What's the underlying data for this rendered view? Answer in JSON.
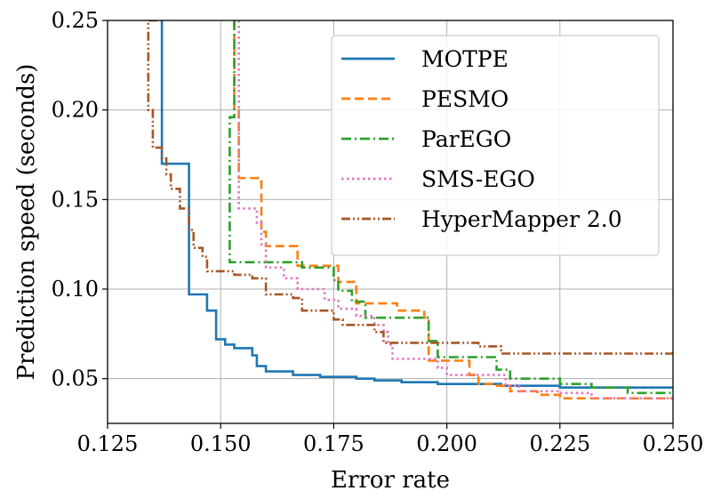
{
  "chart_data": {
    "type": "line",
    "title": "",
    "xlabel": "Error rate",
    "ylabel": "Prediction speed (seconds)",
    "xlim": [
      0.125,
      0.25
    ],
    "ylim": [
      0.025,
      0.25
    ],
    "xticks": [
      0.125,
      0.15,
      0.175,
      0.2,
      0.225,
      0.25
    ],
    "xtick_labels": [
      "0.125",
      "0.150",
      "0.175",
      "0.200",
      "0.225",
      "0.250"
    ],
    "yticks": [
      0.05,
      0.1,
      0.15,
      0.2,
      0.25
    ],
    "ytick_labels": [
      "0.05",
      "0.10",
      "0.15",
      "0.20",
      "0.25"
    ],
    "grid": true,
    "legend_position": "top-right",
    "series": [
      {
        "name": "MOTPE",
        "color": "#1f77b4",
        "dash": "solid",
        "points": [
          [
            0.137,
            0.25
          ],
          [
            0.137,
            0.17
          ],
          [
            0.143,
            0.17
          ],
          [
            0.143,
            0.097
          ],
          [
            0.147,
            0.097
          ],
          [
            0.147,
            0.088
          ],
          [
            0.149,
            0.088
          ],
          [
            0.149,
            0.072
          ],
          [
            0.151,
            0.072
          ],
          [
            0.151,
            0.069
          ],
          [
            0.153,
            0.069
          ],
          [
            0.153,
            0.067
          ],
          [
            0.157,
            0.067
          ],
          [
            0.157,
            0.063
          ],
          [
            0.158,
            0.063
          ],
          [
            0.158,
            0.057
          ],
          [
            0.16,
            0.057
          ],
          [
            0.16,
            0.054
          ],
          [
            0.166,
            0.054
          ],
          [
            0.166,
            0.052
          ],
          [
            0.172,
            0.052
          ],
          [
            0.172,
            0.051
          ],
          [
            0.18,
            0.051
          ],
          [
            0.18,
            0.05
          ],
          [
            0.184,
            0.05
          ],
          [
            0.184,
            0.049
          ],
          [
            0.19,
            0.049
          ],
          [
            0.19,
            0.048
          ],
          [
            0.198,
            0.048
          ],
          [
            0.198,
            0.047
          ],
          [
            0.212,
            0.047
          ],
          [
            0.212,
            0.046
          ],
          [
            0.225,
            0.046
          ],
          [
            0.225,
            0.045
          ],
          [
            0.25,
            0.045
          ]
        ]
      },
      {
        "name": "PESMO",
        "color": "#ff7f0e",
        "dash": "dashed",
        "points": [
          [
            0.153,
            0.25
          ],
          [
            0.153,
            0.2
          ],
          [
            0.154,
            0.2
          ],
          [
            0.154,
            0.162
          ],
          [
            0.159,
            0.162
          ],
          [
            0.159,
            0.132
          ],
          [
            0.16,
            0.132
          ],
          [
            0.16,
            0.124
          ],
          [
            0.167,
            0.124
          ],
          [
            0.167,
            0.113
          ],
          [
            0.176,
            0.113
          ],
          [
            0.176,
            0.104
          ],
          [
            0.18,
            0.104
          ],
          [
            0.18,
            0.092
          ],
          [
            0.189,
            0.092
          ],
          [
            0.189,
            0.088
          ],
          [
            0.195,
            0.088
          ],
          [
            0.195,
            0.084
          ],
          [
            0.196,
            0.084
          ],
          [
            0.196,
            0.06
          ],
          [
            0.205,
            0.06
          ],
          [
            0.205,
            0.052
          ],
          [
            0.207,
            0.052
          ],
          [
            0.207,
            0.047
          ],
          [
            0.21,
            0.047
          ],
          [
            0.21,
            0.046
          ],
          [
            0.214,
            0.046
          ],
          [
            0.214,
            0.043
          ],
          [
            0.22,
            0.043
          ],
          [
            0.22,
            0.041
          ],
          [
            0.225,
            0.041
          ],
          [
            0.225,
            0.039
          ],
          [
            0.25,
            0.039
          ]
        ]
      },
      {
        "name": "ParEGO",
        "color": "#2ca02c",
        "dash": "dashdot",
        "points": [
          [
            0.153,
            0.25
          ],
          [
            0.153,
            0.196
          ],
          [
            0.152,
            0.196
          ],
          [
            0.152,
            0.115
          ],
          [
            0.168,
            0.115
          ],
          [
            0.168,
            0.112
          ],
          [
            0.175,
            0.112
          ],
          [
            0.175,
            0.105
          ],
          [
            0.176,
            0.105
          ],
          [
            0.176,
            0.099
          ],
          [
            0.179,
            0.099
          ],
          [
            0.179,
            0.093
          ],
          [
            0.182,
            0.093
          ],
          [
            0.182,
            0.084
          ],
          [
            0.196,
            0.084
          ],
          [
            0.196,
            0.071
          ],
          [
            0.198,
            0.071
          ],
          [
            0.198,
            0.062
          ],
          [
            0.211,
            0.062
          ],
          [
            0.211,
            0.055
          ],
          [
            0.214,
            0.055
          ],
          [
            0.214,
            0.05
          ],
          [
            0.225,
            0.05
          ],
          [
            0.225,
            0.047
          ],
          [
            0.232,
            0.047
          ],
          [
            0.232,
            0.045
          ],
          [
            0.24,
            0.045
          ],
          [
            0.24,
            0.042
          ],
          [
            0.25,
            0.042
          ]
        ]
      },
      {
        "name": "SMS-EGO",
        "color": "#e377c2",
        "dash": "dotted",
        "points": [
          [
            0.154,
            0.25
          ],
          [
            0.154,
            0.145
          ],
          [
            0.158,
            0.145
          ],
          [
            0.158,
            0.137
          ],
          [
            0.159,
            0.137
          ],
          [
            0.159,
            0.125
          ],
          [
            0.16,
            0.125
          ],
          [
            0.16,
            0.112
          ],
          [
            0.164,
            0.112
          ],
          [
            0.164,
            0.106
          ],
          [
            0.167,
            0.106
          ],
          [
            0.167,
            0.1
          ],
          [
            0.173,
            0.1
          ],
          [
            0.173,
            0.094
          ],
          [
            0.176,
            0.094
          ],
          [
            0.176,
            0.089
          ],
          [
            0.18,
            0.089
          ],
          [
            0.18,
            0.085
          ],
          [
            0.184,
            0.085
          ],
          [
            0.184,
            0.08
          ],
          [
            0.186,
            0.08
          ],
          [
            0.186,
            0.076
          ],
          [
            0.187,
            0.076
          ],
          [
            0.187,
            0.069
          ],
          [
            0.188,
            0.069
          ],
          [
            0.188,
            0.061
          ],
          [
            0.198,
            0.061
          ],
          [
            0.198,
            0.056
          ],
          [
            0.2,
            0.056
          ],
          [
            0.2,
            0.052
          ],
          [
            0.213,
            0.052
          ],
          [
            0.213,
            0.046
          ],
          [
            0.216,
            0.046
          ],
          [
            0.216,
            0.043
          ],
          [
            0.225,
            0.043
          ],
          [
            0.225,
            0.042
          ],
          [
            0.232,
            0.042
          ],
          [
            0.232,
            0.039
          ],
          [
            0.25,
            0.039
          ]
        ]
      },
      {
        "name": "HyperMapper 2.0",
        "color": "#a65628",
        "dash": "dashdotdot",
        "points": [
          [
            0.136,
            0.25
          ],
          [
            0.134,
            0.25
          ],
          [
            0.134,
            0.2
          ],
          [
            0.135,
            0.2
          ],
          [
            0.135,
            0.179
          ],
          [
            0.137,
            0.179
          ],
          [
            0.137,
            0.173
          ],
          [
            0.138,
            0.173
          ],
          [
            0.138,
            0.164
          ],
          [
            0.139,
            0.164
          ],
          [
            0.139,
            0.156
          ],
          [
            0.141,
            0.156
          ],
          [
            0.141,
            0.145
          ],
          [
            0.143,
            0.145
          ],
          [
            0.143,
            0.133
          ],
          [
            0.144,
            0.133
          ],
          [
            0.144,
            0.123
          ],
          [
            0.146,
            0.123
          ],
          [
            0.146,
            0.118
          ],
          [
            0.147,
            0.118
          ],
          [
            0.147,
            0.11
          ],
          [
            0.153,
            0.11
          ],
          [
            0.153,
            0.108
          ],
          [
            0.157,
            0.108
          ],
          [
            0.157,
            0.106
          ],
          [
            0.16,
            0.106
          ],
          [
            0.16,
            0.097
          ],
          [
            0.166,
            0.097
          ],
          [
            0.166,
            0.095
          ],
          [
            0.168,
            0.095
          ],
          [
            0.168,
            0.088
          ],
          [
            0.175,
            0.088
          ],
          [
            0.175,
            0.083
          ],
          [
            0.177,
            0.083
          ],
          [
            0.177,
            0.08
          ],
          [
            0.184,
            0.08
          ],
          [
            0.184,
            0.076
          ],
          [
            0.186,
            0.076
          ],
          [
            0.186,
            0.07
          ],
          [
            0.207,
            0.07
          ],
          [
            0.207,
            0.068
          ],
          [
            0.212,
            0.068
          ],
          [
            0.212,
            0.064
          ],
          [
            0.25,
            0.064
          ]
        ]
      }
    ]
  }
}
